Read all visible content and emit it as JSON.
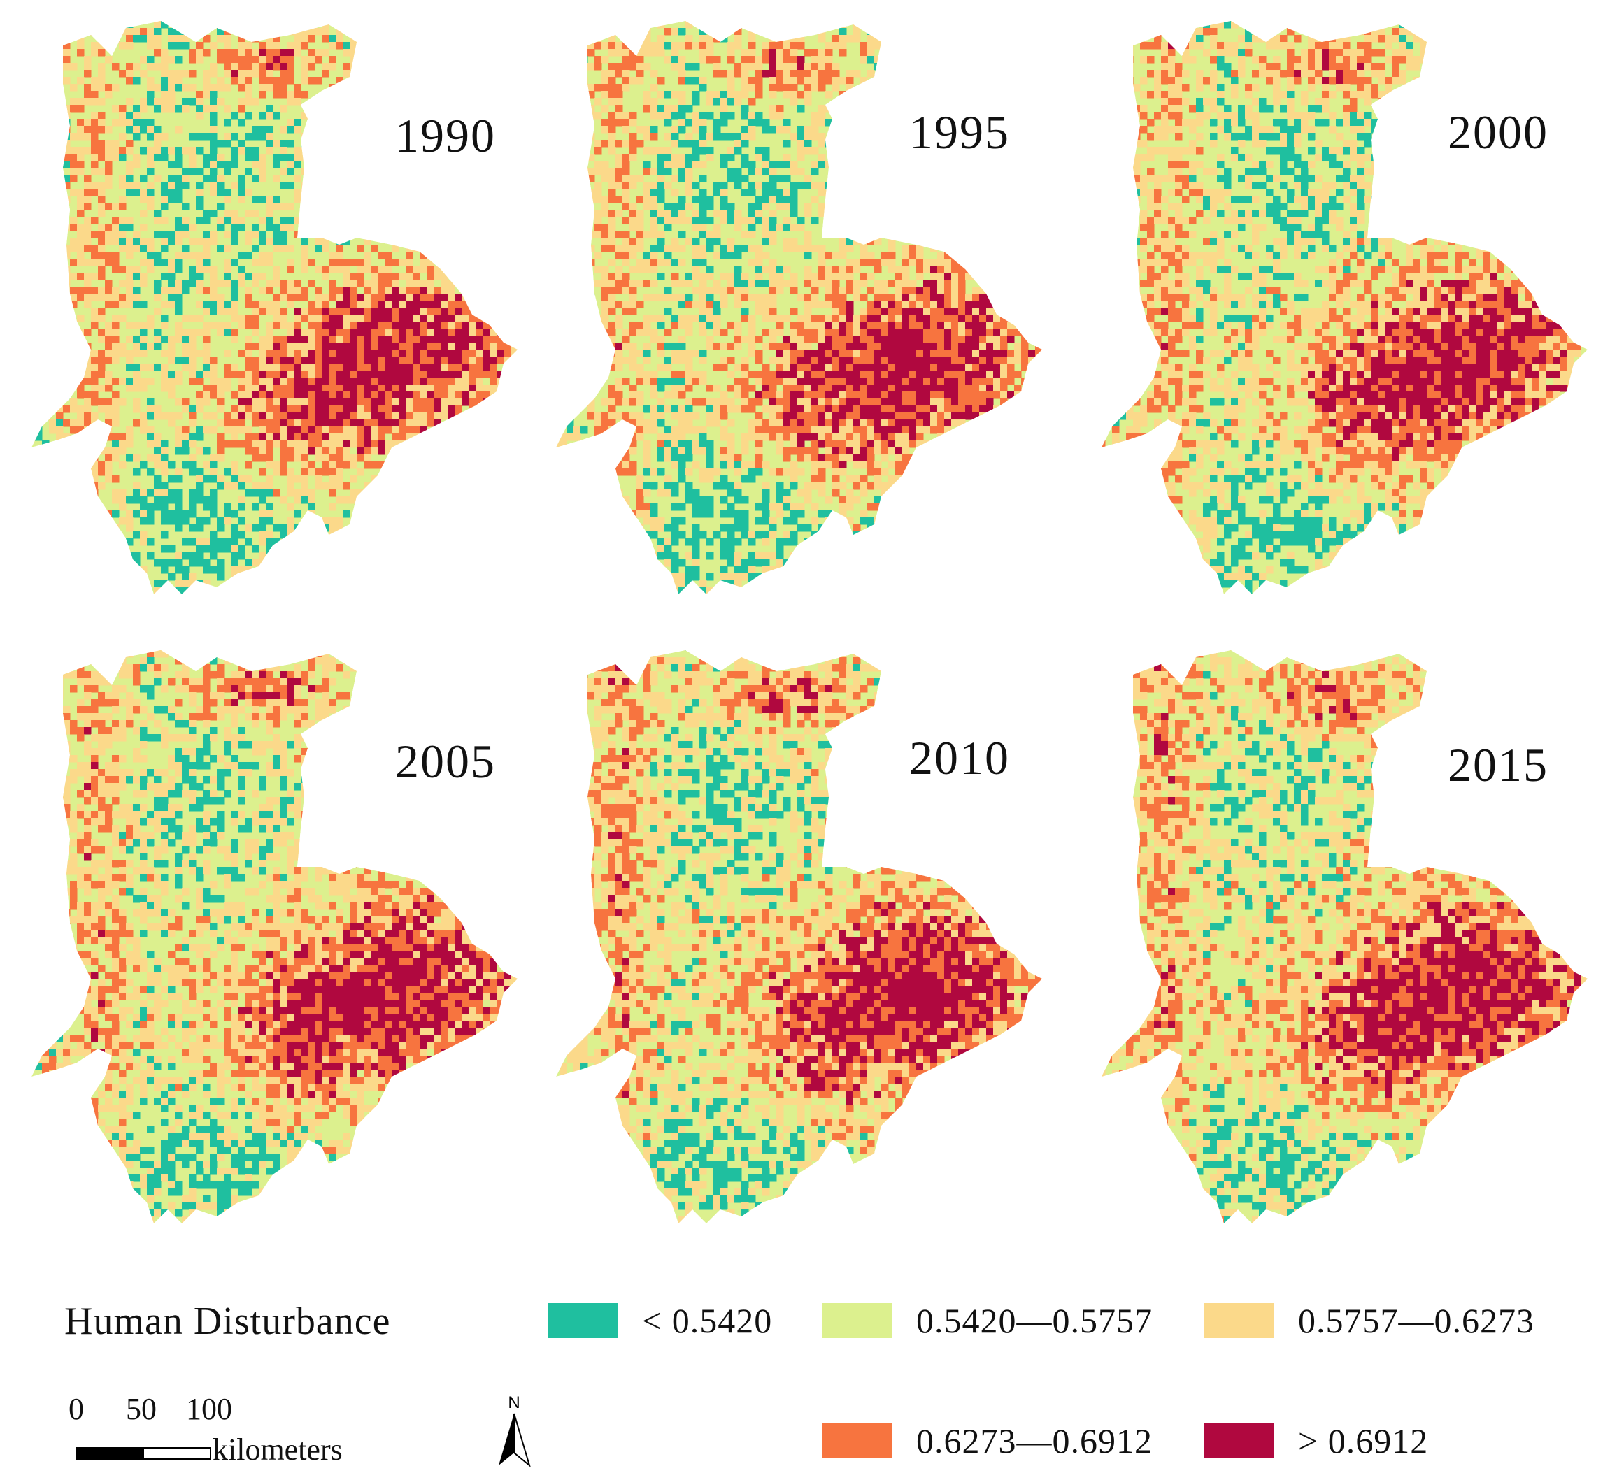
{
  "figure": {
    "panels": [
      {
        "year": "1990"
      },
      {
        "year": "1995"
      },
      {
        "year": "2000"
      },
      {
        "year": "2005"
      },
      {
        "year": "2010"
      },
      {
        "year": "2015"
      }
    ]
  },
  "legend": {
    "title": "Human Disturbance",
    "classes": [
      {
        "label": "< 0.5420",
        "color": "#1fbf9f"
      },
      {
        "label": "0.5420—0.5757",
        "color": "#dcf08e"
      },
      {
        "label": "0.5757—0.6273",
        "color": "#fbd98a"
      },
      {
        "label": "0.6273—0.6912",
        "color": "#f7743f"
      },
      {
        "label": "> 0.6912",
        "color": "#b0083f"
      }
    ]
  },
  "scale_bar": {
    "ticks": [
      "0",
      "50",
      "100"
    ],
    "unit": "kilometers"
  },
  "north_arrow": {
    "label": "N"
  }
}
